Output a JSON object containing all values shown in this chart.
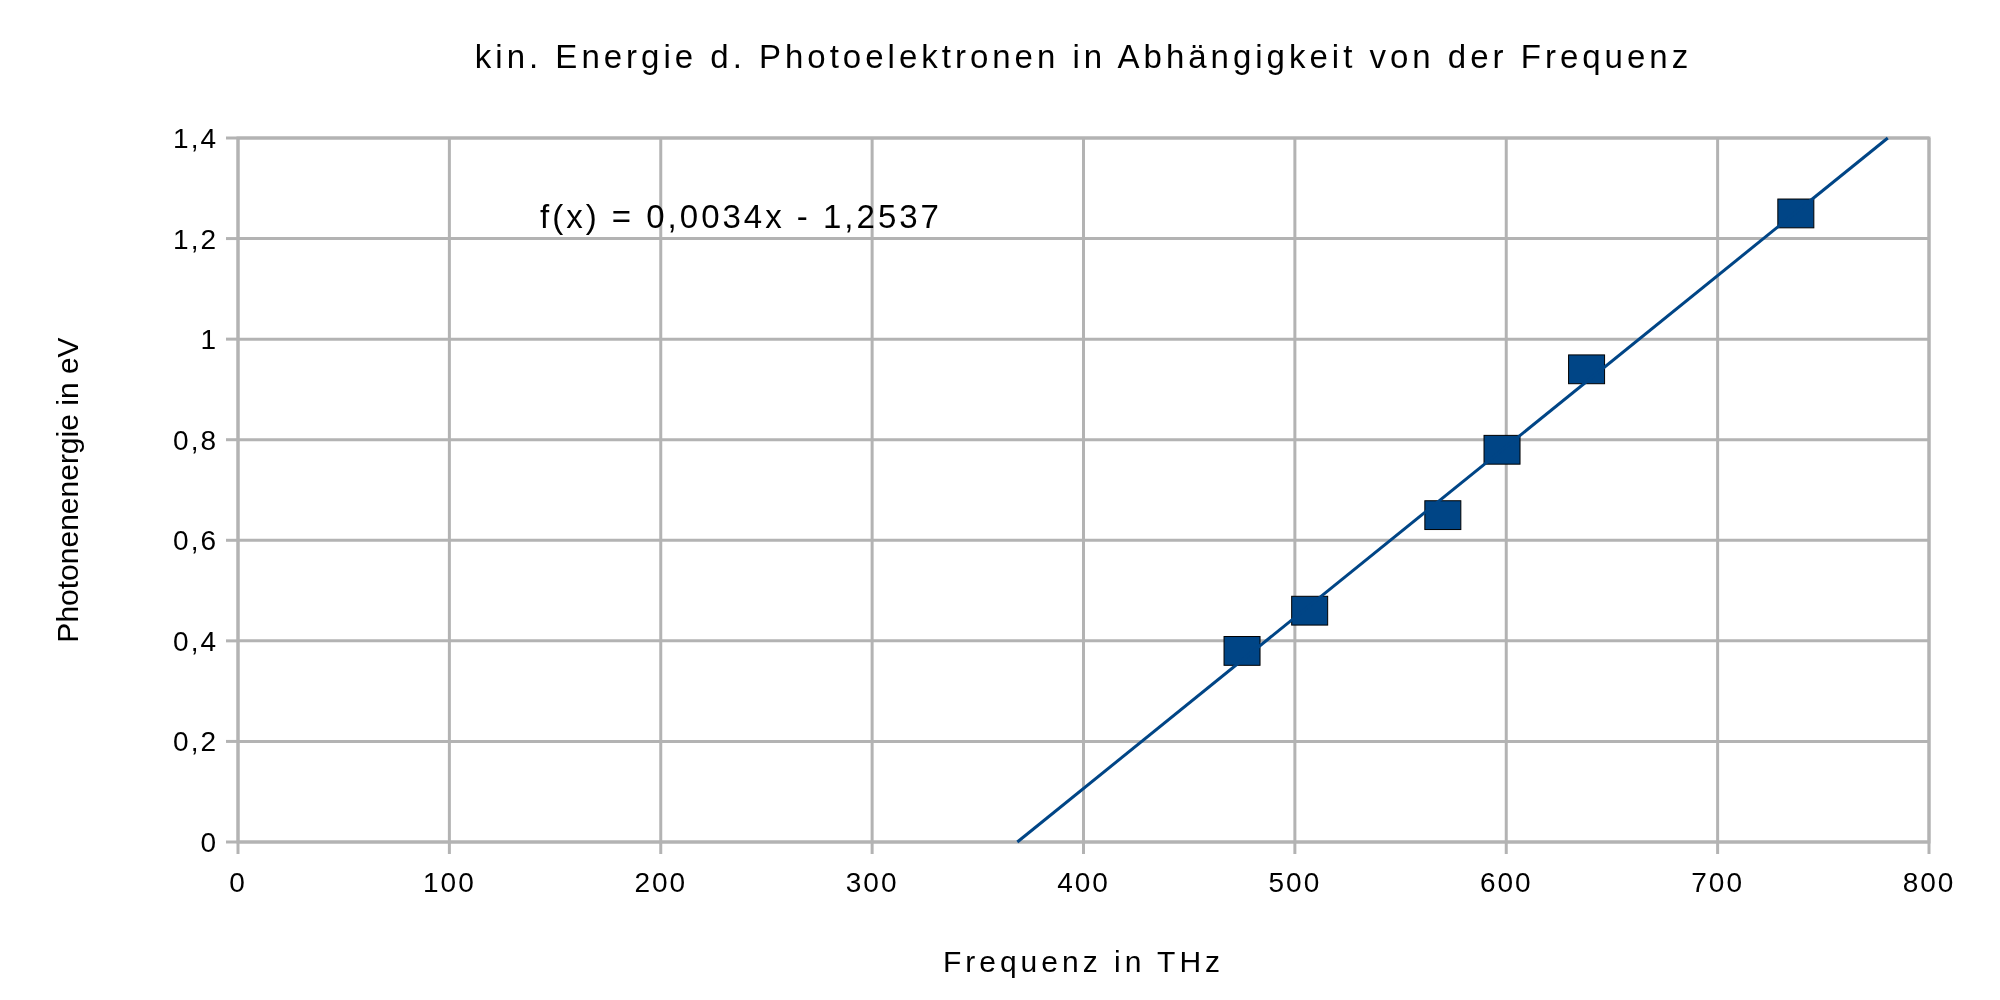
{
  "chart_data": {
    "type": "scatter",
    "title": "kin. Energie d. Photoelektronen in Abhängigkeit von der Frequenz",
    "xlabel": "Frequenz in THz",
    "ylabel": "Photonenenergie in eV",
    "annotations": [
      "f(x) = 0,0034x - 1,2537"
    ],
    "series": [
      {
        "color": "#004586",
        "x": [
          475,
          507,
          570,
          598,
          638,
          737
        ],
        "values": [
          0.38,
          0.46,
          0.65,
          0.78,
          0.94,
          1.25
        ],
        "marker": "square"
      },
      {
        "type": "line",
        "color": "#004586",
        "x": [
          368.7,
          780.5
        ],
        "values": [
          0,
          1.4
        ],
        "marker": "none",
        "line_style": "solid"
      }
    ],
    "xlim": [
      0,
      800
    ],
    "xticks": [
      0,
      100,
      200,
      300,
      400,
      500,
      600,
      700,
      800
    ],
    "ylim": [
      0,
      1.4
    ],
    "yticks": [
      {
        "value": 0,
        "label": "0"
      },
      {
        "value": 0.2,
        "label": "0,2"
      },
      {
        "value": 0.4,
        "label": "0,4"
      },
      {
        "value": 0.6,
        "label": "0,6"
      },
      {
        "value": 0.8,
        "label": "0,8"
      },
      {
        "value": 1,
        "label": "1"
      },
      {
        "value": 1.2,
        "label": "1,2"
      },
      {
        "value": 1.4,
        "label": "1,4"
      }
    ],
    "grid": true
  }
}
